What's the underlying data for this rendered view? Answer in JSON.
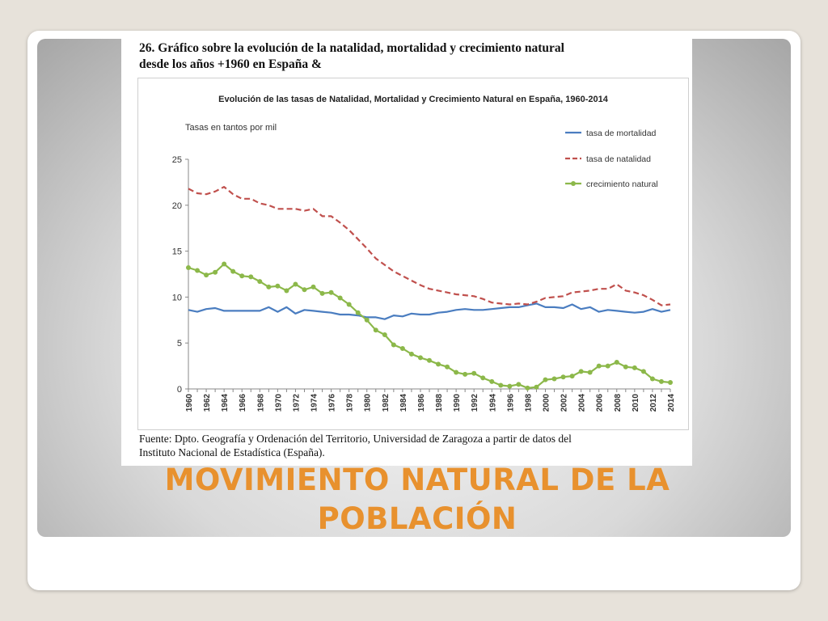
{
  "slide": {
    "title_line1": "MOVIMIENTO NATURAL DE LA",
    "title_line2": "POBLACIÓN"
  },
  "document": {
    "heading_line1": "26. Gráfico sobre la evolución de la natalidad, mortalidad y crecimiento natural",
    "heading_line2": "desde los años +1960 en España &",
    "source_line1": "Fuente: Dpto. Geografía y Ordenación del Territorio, Universidad de Zaragoza a partir de datos del",
    "source_line2": "Instituto Nacional de Estadística (España)."
  },
  "colors": {
    "mortality": "#4a7dc0",
    "natality": "#c0504d",
    "growth": "#8cb84a",
    "title": "#e8912e"
  },
  "chart_data": {
    "type": "line",
    "title": "Evolución de las tasas de Natalidad, Mortalidad y Crecimiento Natural en España, 1960-2014",
    "units_label": "Tasas en tantos por mil",
    "xlabel": "",
    "ylabel": "",
    "ylim": [
      0,
      25
    ],
    "yticks": [
      0,
      5,
      10,
      15,
      20,
      25
    ],
    "xticks": [
      1960,
      1962,
      1964,
      1966,
      1968,
      1970,
      1972,
      1974,
      1976,
      1978,
      1980,
      1982,
      1984,
      1986,
      1988,
      1990,
      1992,
      1994,
      1996,
      1998,
      2000,
      2002,
      2004,
      2006,
      2008,
      2010,
      2012,
      2014
    ],
    "grid": false,
    "legend_position": "top-right",
    "x": [
      1960,
      1961,
      1962,
      1963,
      1964,
      1965,
      1966,
      1967,
      1968,
      1969,
      1970,
      1971,
      1972,
      1973,
      1974,
      1975,
      1976,
      1977,
      1978,
      1979,
      1980,
      1981,
      1982,
      1983,
      1984,
      1985,
      1986,
      1987,
      1988,
      1989,
      1990,
      1991,
      1992,
      1993,
      1994,
      1995,
      1996,
      1997,
      1998,
      1999,
      2000,
      2001,
      2002,
      2003,
      2004,
      2005,
      2006,
      2007,
      2008,
      2009,
      2010,
      2011,
      2012,
      2013,
      2014
    ],
    "series": [
      {
        "name": "tasa de mortalidad",
        "style": "solid",
        "values": [
          8.6,
          8.4,
          8.7,
          8.8,
          8.5,
          8.5,
          8.5,
          8.5,
          8.5,
          8.9,
          8.4,
          8.9,
          8.2,
          8.6,
          8.5,
          8.4,
          8.3,
          8.1,
          8.1,
          8.0,
          7.8,
          7.8,
          7.6,
          8.0,
          7.9,
          8.2,
          8.1,
          8.1,
          8.3,
          8.4,
          8.6,
          8.7,
          8.6,
          8.6,
          8.7,
          8.8,
          8.9,
          8.9,
          9.1,
          9.3,
          8.9,
          8.9,
          8.8,
          9.2,
          8.7,
          8.9,
          8.4,
          8.6,
          8.5,
          8.4,
          8.3,
          8.4,
          8.7,
          8.4,
          8.6
        ]
      },
      {
        "name": "tasa de natalidad",
        "style": "dashed",
        "values": [
          21.8,
          21.3,
          21.2,
          21.5,
          22.0,
          21.2,
          20.7,
          20.7,
          20.2,
          20.0,
          19.6,
          19.6,
          19.6,
          19.4,
          19.6,
          18.8,
          18.8,
          18.1,
          17.3,
          16.3,
          15.3,
          14.2,
          13.5,
          12.8,
          12.3,
          11.8,
          11.3,
          10.9,
          10.7,
          10.5,
          10.3,
          10.2,
          10.1,
          9.8,
          9.4,
          9.3,
          9.2,
          9.3,
          9.2,
          9.5,
          9.9,
          10.0,
          10.1,
          10.5,
          10.6,
          10.7,
          10.9,
          10.9,
          11.4,
          10.7,
          10.5,
          10.2,
          9.7,
          9.1,
          9.2
        ]
      },
      {
        "name": "crecimiento natural",
        "style": "solid-markers",
        "values": [
          13.2,
          12.9,
          12.4,
          12.7,
          13.6,
          12.8,
          12.3,
          12.2,
          11.7,
          11.1,
          11.2,
          10.7,
          11.4,
          10.8,
          11.1,
          10.4,
          10.5,
          9.9,
          9.2,
          8.3,
          7.5,
          6.4,
          5.9,
          4.8,
          4.4,
          3.8,
          3.4,
          3.1,
          2.7,
          2.4,
          1.8,
          1.6,
          1.7,
          1.2,
          0.8,
          0.4,
          0.3,
          0.5,
          0.1,
          0.2,
          1.0,
          1.1,
          1.3,
          1.4,
          1.9,
          1.8,
          2.5,
          2.5,
          2.9,
          2.4,
          2.3,
          1.9,
          1.1,
          0.8,
          0.7
        ]
      }
    ]
  }
}
